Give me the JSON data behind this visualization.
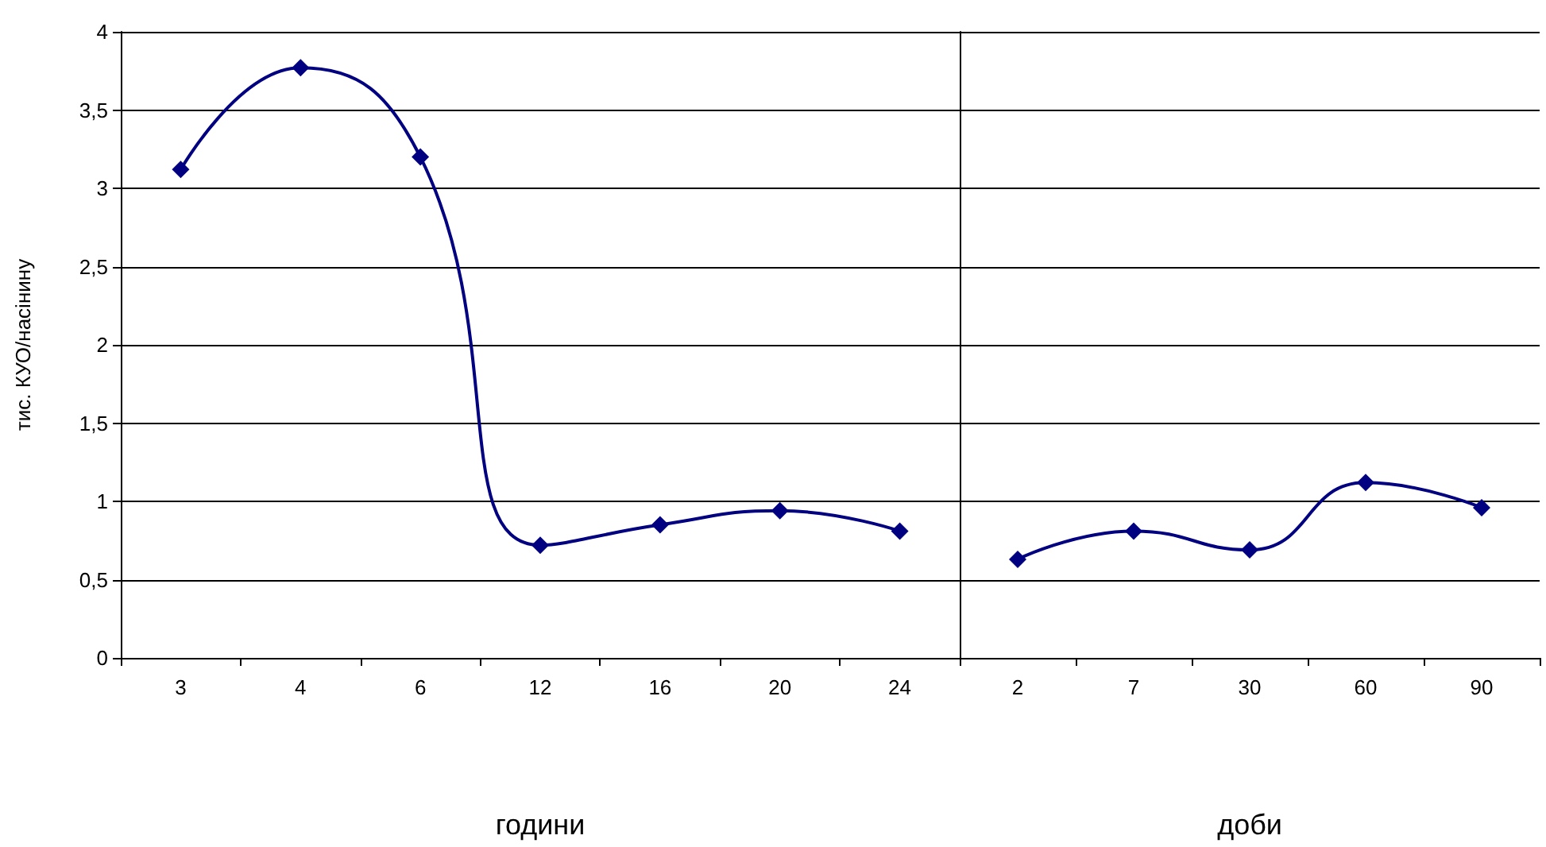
{
  "chart_data": [
    {
      "type": "line",
      "ylabel": "тис. КУО/насінину",
      "xlabel": "години",
      "categories": [
        "3",
        "4",
        "6",
        "12",
        "16",
        "20",
        "24"
      ],
      "series": [
        {
          "color": "#000080",
          "values": [
            3.12,
            3.77,
            3.2,
            0.72,
            0.85,
            0.94,
            0.81
          ]
        }
      ],
      "ylim": [
        0,
        4
      ],
      "yticks": [
        0,
        {
          "value": 0.5,
          "label": "0,5"
        },
        1,
        {
          "value": 1.5,
          "label": "1,5"
        },
        2,
        {
          "value": 2.5,
          "label": "2,5"
        },
        3,
        {
          "value": 3.5,
          "label": "3,5"
        },
        4
      ],
      "grid": "y",
      "marker": "diamond",
      "line_style": "solid"
    },
    {
      "type": "line",
      "xlabel": "доби",
      "categories": [
        "2",
        "7",
        "30",
        "60",
        "90"
      ],
      "series": [
        {
          "color": "#000080",
          "values": [
            0.63,
            0.81,
            0.69,
            1.12,
            0.96
          ]
        }
      ],
      "ylim": [
        0,
        4
      ],
      "yticks": [
        0,
        0.5,
        1,
        1.5,
        2,
        2.5,
        3,
        3.5,
        4
      ],
      "grid": "y",
      "marker": "diamond",
      "line_style": "solid",
      "tick_labels": "x"
    }
  ]
}
